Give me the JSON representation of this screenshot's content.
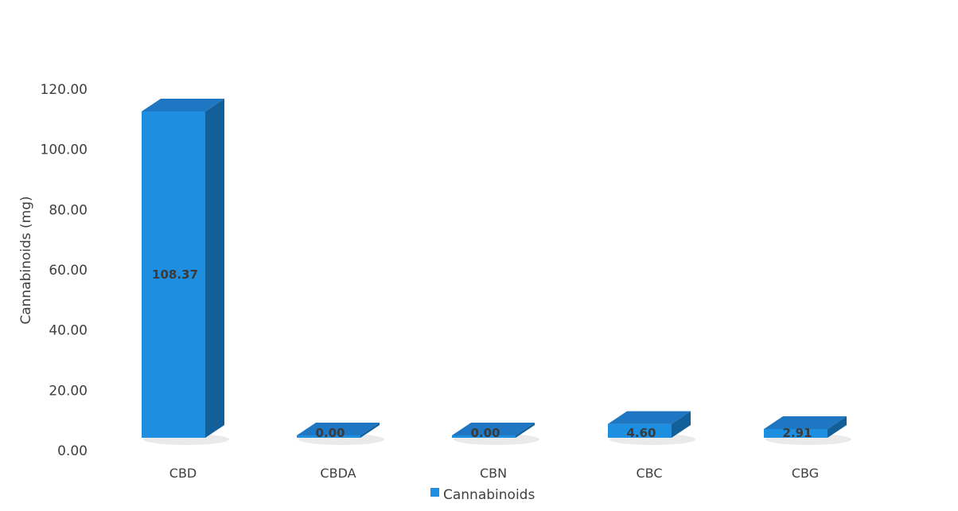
{
  "chart_data": {
    "type": "bar",
    "categories": [
      "CBD",
      "CBDA",
      "CBN",
      "CBC",
      "CBG"
    ],
    "series": [
      {
        "name": "Cannabinoids",
        "values": [
          108.37,
          0.0,
          0.0,
          4.6,
          2.91
        ]
      }
    ],
    "data_labels": [
      "108.37",
      "0.00",
      "0.00",
      "4.60",
      "2.91"
    ],
    "ylabel": "Cannabinoids (mg)",
    "xlabel": "",
    "title": "",
    "ylim": [
      0,
      120
    ],
    "yticks": [
      "0.00",
      "20.00",
      "40.00",
      "60.00",
      "80.00",
      "100.00",
      "120.00"
    ],
    "grid": false,
    "legend": {
      "position": "bottom",
      "entries": [
        "Cannabinoids"
      ]
    },
    "style": "3d-column",
    "colors": {
      "front": "#1e8fe0",
      "top": "#1f77c4",
      "side": "#125f99",
      "shadow": "#dcdcdc"
    }
  }
}
